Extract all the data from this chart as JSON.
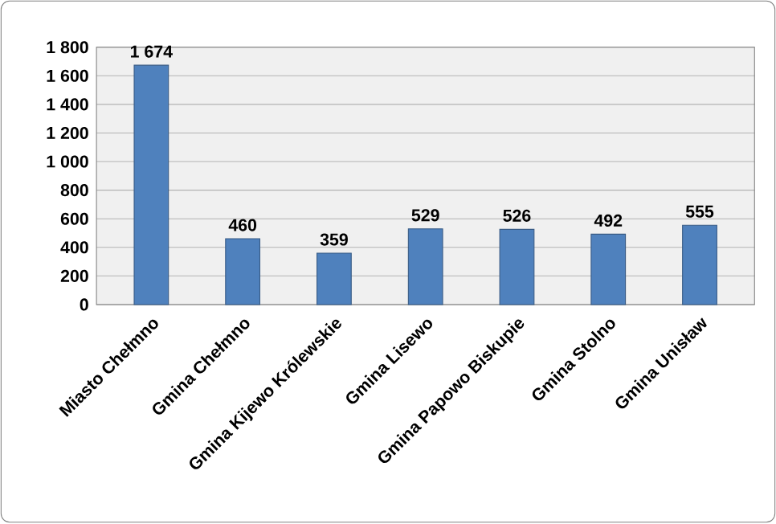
{
  "chart_data": {
    "type": "bar",
    "categories": [
      "Miasto Chełmno",
      "Gmina Chełmno",
      "Gmina Kijewo Królewskie",
      "Gmina Lisewo",
      "Gmina Papowo Biskupie",
      "Gmina Stolno",
      "Gmina Unisław"
    ],
    "values": [
      1674,
      460,
      359,
      529,
      526,
      492,
      555
    ],
    "value_labels": [
      "1 674",
      "460",
      "359",
      "529",
      "526",
      "492",
      "555"
    ],
    "color": "#4f81bd",
    "ylim": [
      0,
      1800
    ],
    "yticks": [
      0,
      200,
      400,
      600,
      800,
      {
        "value": 1000,
        "label": "1 000"
      },
      {
        "value": 1200,
        "label": "1 200"
      },
      {
        "value": 1400,
        "label": "1 400"
      },
      {
        "value": 1600,
        "label": "1 600"
      },
      {
        "value": 1800,
        "label": "1 800"
      }
    ],
    "grid": "y"
  }
}
